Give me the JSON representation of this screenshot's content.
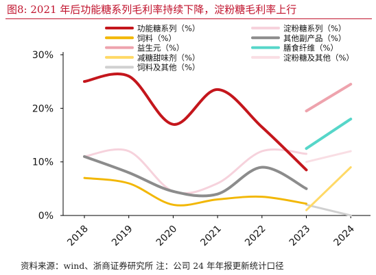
{
  "header": {
    "title": "图8:   2021 年后功能糖系列毛利率持续下降，淀粉糖毛利率上行"
  },
  "footer": {
    "source": "资料来源：wind、浙商证券研究所 注：公司 24 年年报更新统计口径"
  },
  "chart_data": {
    "type": "line",
    "x": [
      "2018",
      "2019",
      "2020",
      "2021",
      "2022",
      "2023",
      "2024"
    ],
    "y_ticks": [
      "30%",
      "20%",
      "10%",
      "0%"
    ],
    "ylim": [
      0,
      30
    ],
    "y_unit": "%",
    "legend_position": "top",
    "series": [
      {
        "name": "功能糖系列（%）",
        "color": "#c4161c",
        "width": 4,
        "values": [
          25,
          26,
          17,
          23.5,
          16.5,
          8.5,
          null
        ]
      },
      {
        "name": "淀粉糖系列（%）",
        "color": "#f6d2dc",
        "width": 3,
        "values": [
          11,
          12,
          4.5,
          6,
          12,
          11.5,
          null
        ]
      },
      {
        "name": "饲料（%）",
        "color": "#f2b705",
        "width": 3,
        "values": [
          7,
          6,
          2,
          3,
          3.5,
          2.2,
          null
        ]
      },
      {
        "name": "其他副产品（%）",
        "color": "#8c8c8c",
        "width": 4,
        "values": [
          11,
          8,
          4.5,
          4,
          9,
          5,
          null
        ]
      },
      {
        "name": "益生元（%）",
        "color": "#eea3ad",
        "width": 4,
        "values": [
          null,
          null,
          null,
          null,
          null,
          19.5,
          24.5
        ]
      },
      {
        "name": "膳食纤维（%）",
        "color": "#56d6c9",
        "width": 4,
        "values": [
          null,
          null,
          null,
          null,
          null,
          12.5,
          18
        ]
      },
      {
        "name": "减糖甜味剂（%）",
        "color": "#ffd966",
        "width": 3,
        "values": [
          null,
          null,
          null,
          null,
          null,
          1,
          9
        ]
      },
      {
        "name": "淀粉糖及其他（%）",
        "color": "#f9dee4",
        "width": 3,
        "values": [
          null,
          null,
          null,
          null,
          null,
          10,
          12
        ]
      },
      {
        "name": "饲料及其他（%）",
        "color": "#d0d0d0",
        "width": 3,
        "values": [
          null,
          null,
          null,
          null,
          null,
          2,
          0
        ]
      }
    ]
  }
}
